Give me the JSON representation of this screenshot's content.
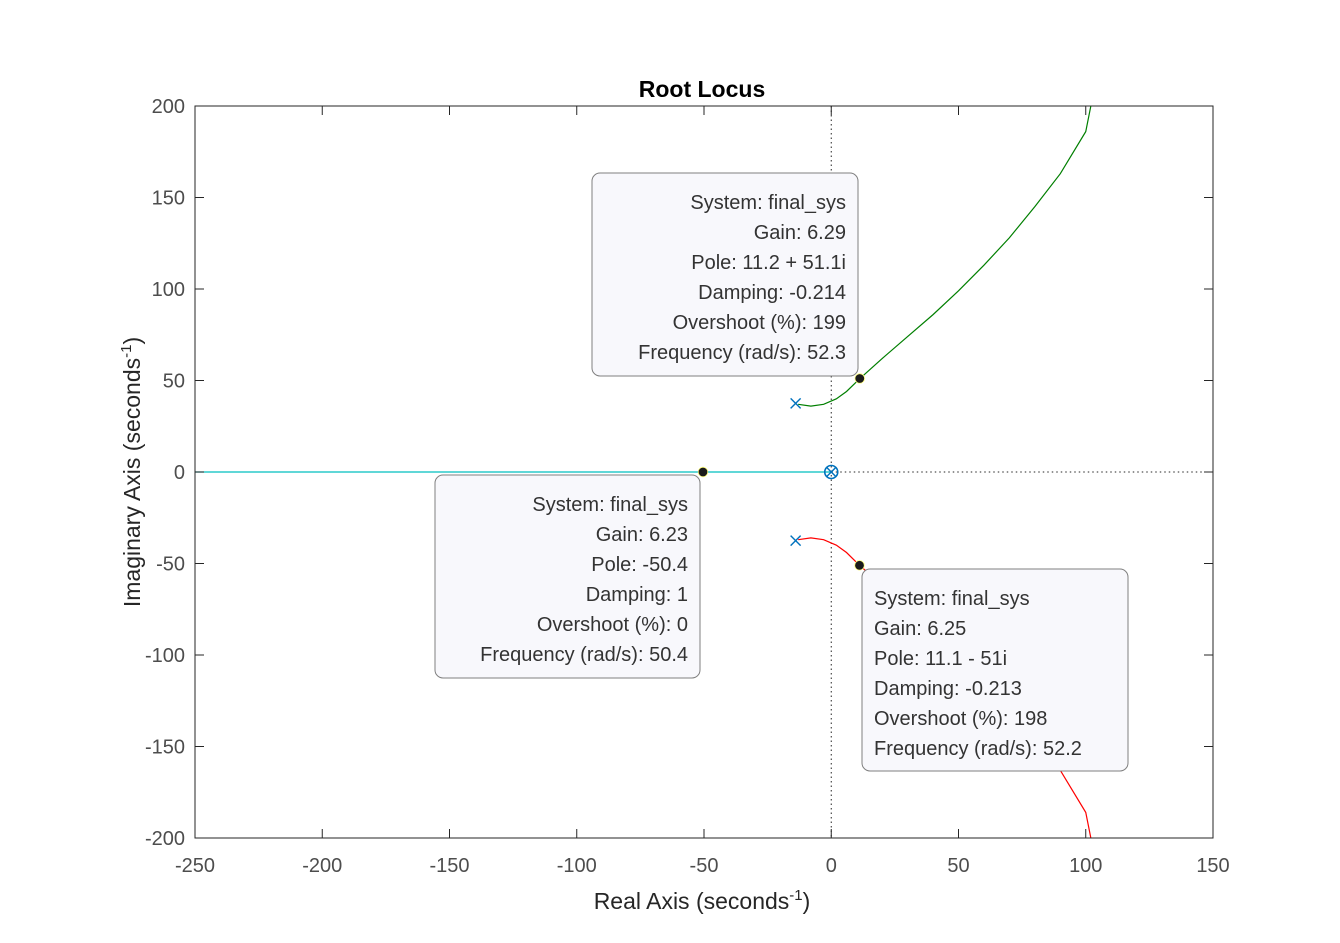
{
  "chart_data": {
    "type": "scatter",
    "title": "Root Locus",
    "xlabel": {
      "text": "Real Axis (seconds",
      "sup": "-1",
      "close": ")"
    },
    "ylabel": {
      "text": "Imaginary Axis (seconds",
      "sup": "-1",
      "close": ")"
    },
    "xlim": [
      -250,
      150
    ],
    "ylim": [
      -200,
      200
    ],
    "xticks": [
      -250,
      -200,
      -150,
      -100,
      -50,
      0,
      50,
      100,
      150
    ],
    "yticks": [
      -200,
      -150,
      -100,
      -50,
      0,
      50,
      100,
      150,
      200
    ],
    "grid": false,
    "colors": {
      "upper_branch": "#007f00",
      "lower_branch": "#ff0000",
      "real_branch": "#00bfbf",
      "marker": "#0072bd",
      "axes": "#262626"
    },
    "series": [
      {
        "color": "#007f00",
        "x": [
          -13,
          -8,
          -3,
          2,
          6,
          11.2,
          20,
          30,
          40,
          50,
          60,
          70,
          80,
          90,
          100,
          102
        ],
        "y": [
          37,
          36,
          37,
          40,
          44,
          51,
          62,
          74,
          86,
          99,
          113,
          128,
          145,
          163,
          186,
          200
        ]
      },
      {
        "color": "#ff0000",
        "x": [
          -13,
          -8,
          -3,
          2,
          6,
          11.1,
          40,
          50,
          60,
          70,
          80,
          90,
          100,
          102
        ],
        "y": [
          -37,
          -36,
          -37,
          -40,
          -44,
          -51,
          -86,
          -99,
          -113,
          -128,
          -145,
          -163,
          -186,
          -200
        ]
      },
      {
        "color": "#00bfbf",
        "x": [
          -250,
          0
        ],
        "y": [
          0,
          0
        ]
      }
    ],
    "poles": [
      {
        "x": -14,
        "y": 37.5
      },
      {
        "x": -14,
        "y": -37.5
      },
      {
        "x": 0,
        "y": 0
      }
    ],
    "zeros": [
      {
        "x": 0,
        "y": 0
      }
    ],
    "datatips": [
      {
        "x": 11.2,
        "y": 51.1,
        "align": "end",
        "lines": [
          "System: final_sys",
          "Gain: 6.29",
          "Pole: 11.2 + 51.1i",
          "Damping: -0.214",
          "Overshoot (%): 199",
          "Frequency (rad/s): 52.3"
        ]
      },
      {
        "x": -50.4,
        "y": 0,
        "align": "end",
        "lines": [
          "System: final_sys",
          "Gain: 6.23",
          "Pole: -50.4",
          "Damping: 1",
          "Overshoot (%): 0",
          "Frequency (rad/s): 50.4"
        ]
      },
      {
        "x": 11.1,
        "y": -51,
        "align": "start",
        "lines": [
          "System: final_sys",
          "Gain: 6.25",
          "Pole: 11.1 - 51i",
          "Damping: -0.213",
          "Overshoot (%): 198",
          "Frequency (rad/s): 52.2"
        ]
      }
    ]
  }
}
